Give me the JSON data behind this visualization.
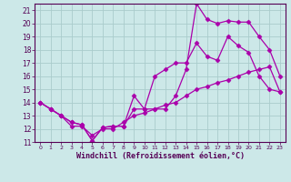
{
  "xlabel": "Windchill (Refroidissement éolien,°C)",
  "x_ticks": [
    0,
    1,
    2,
    3,
    4,
    5,
    6,
    7,
    8,
    9,
    10,
    11,
    12,
    13,
    14,
    15,
    16,
    17,
    18,
    19,
    20,
    21,
    22,
    23
  ],
  "ylim": [
    11,
    21.5
  ],
  "xlim": [
    -0.5,
    23.5
  ],
  "yticks": [
    11,
    12,
    13,
    14,
    15,
    16,
    17,
    18,
    19,
    20,
    21
  ],
  "bg_color": "#cce8e8",
  "grid_color": "#aacccc",
  "line_color": "#aa00aa",
  "line1_x": [
    0,
    1,
    2,
    3,
    4,
    5,
    6,
    7,
    8,
    9,
    10,
    11,
    12,
    13,
    14,
    15,
    16,
    17,
    18,
    19,
    20,
    21,
    22,
    23
  ],
  "line1_y": [
    14.0,
    13.5,
    13.0,
    12.5,
    12.3,
    11.1,
    12.1,
    12.2,
    12.2,
    14.5,
    13.5,
    13.5,
    13.5,
    14.5,
    16.5,
    21.5,
    20.3,
    20.0,
    20.2,
    20.1,
    20.1,
    19.0,
    18.0,
    16.0
  ],
  "line2_x": [
    0,
    1,
    2,
    3,
    4,
    5,
    6,
    7,
    8,
    9,
    10,
    11,
    12,
    13,
    14,
    15,
    16,
    17,
    18,
    19,
    20,
    21,
    22,
    23
  ],
  "line2_y": [
    14.0,
    13.5,
    13.0,
    12.5,
    12.3,
    11.1,
    12.1,
    12.2,
    12.2,
    13.5,
    13.5,
    16.0,
    16.5,
    17.0,
    17.0,
    18.5,
    17.5,
    17.2,
    19.0,
    18.3,
    17.8,
    16.0,
    15.0,
    14.8
  ],
  "line3_x": [
    0,
    1,
    2,
    3,
    4,
    5,
    6,
    7,
    8,
    9,
    10,
    11,
    12,
    13,
    14,
    15,
    16,
    17,
    18,
    19,
    20,
    21,
    22,
    23
  ],
  "line3_y": [
    14.0,
    13.5,
    13.0,
    12.2,
    12.2,
    11.5,
    12.0,
    12.0,
    12.5,
    13.0,
    13.2,
    13.5,
    13.8,
    14.0,
    14.5,
    15.0,
    15.2,
    15.5,
    15.7,
    16.0,
    16.3,
    16.5,
    16.7,
    14.8
  ],
  "marker": "D",
  "markersize": 2.5,
  "linewidth": 0.9
}
